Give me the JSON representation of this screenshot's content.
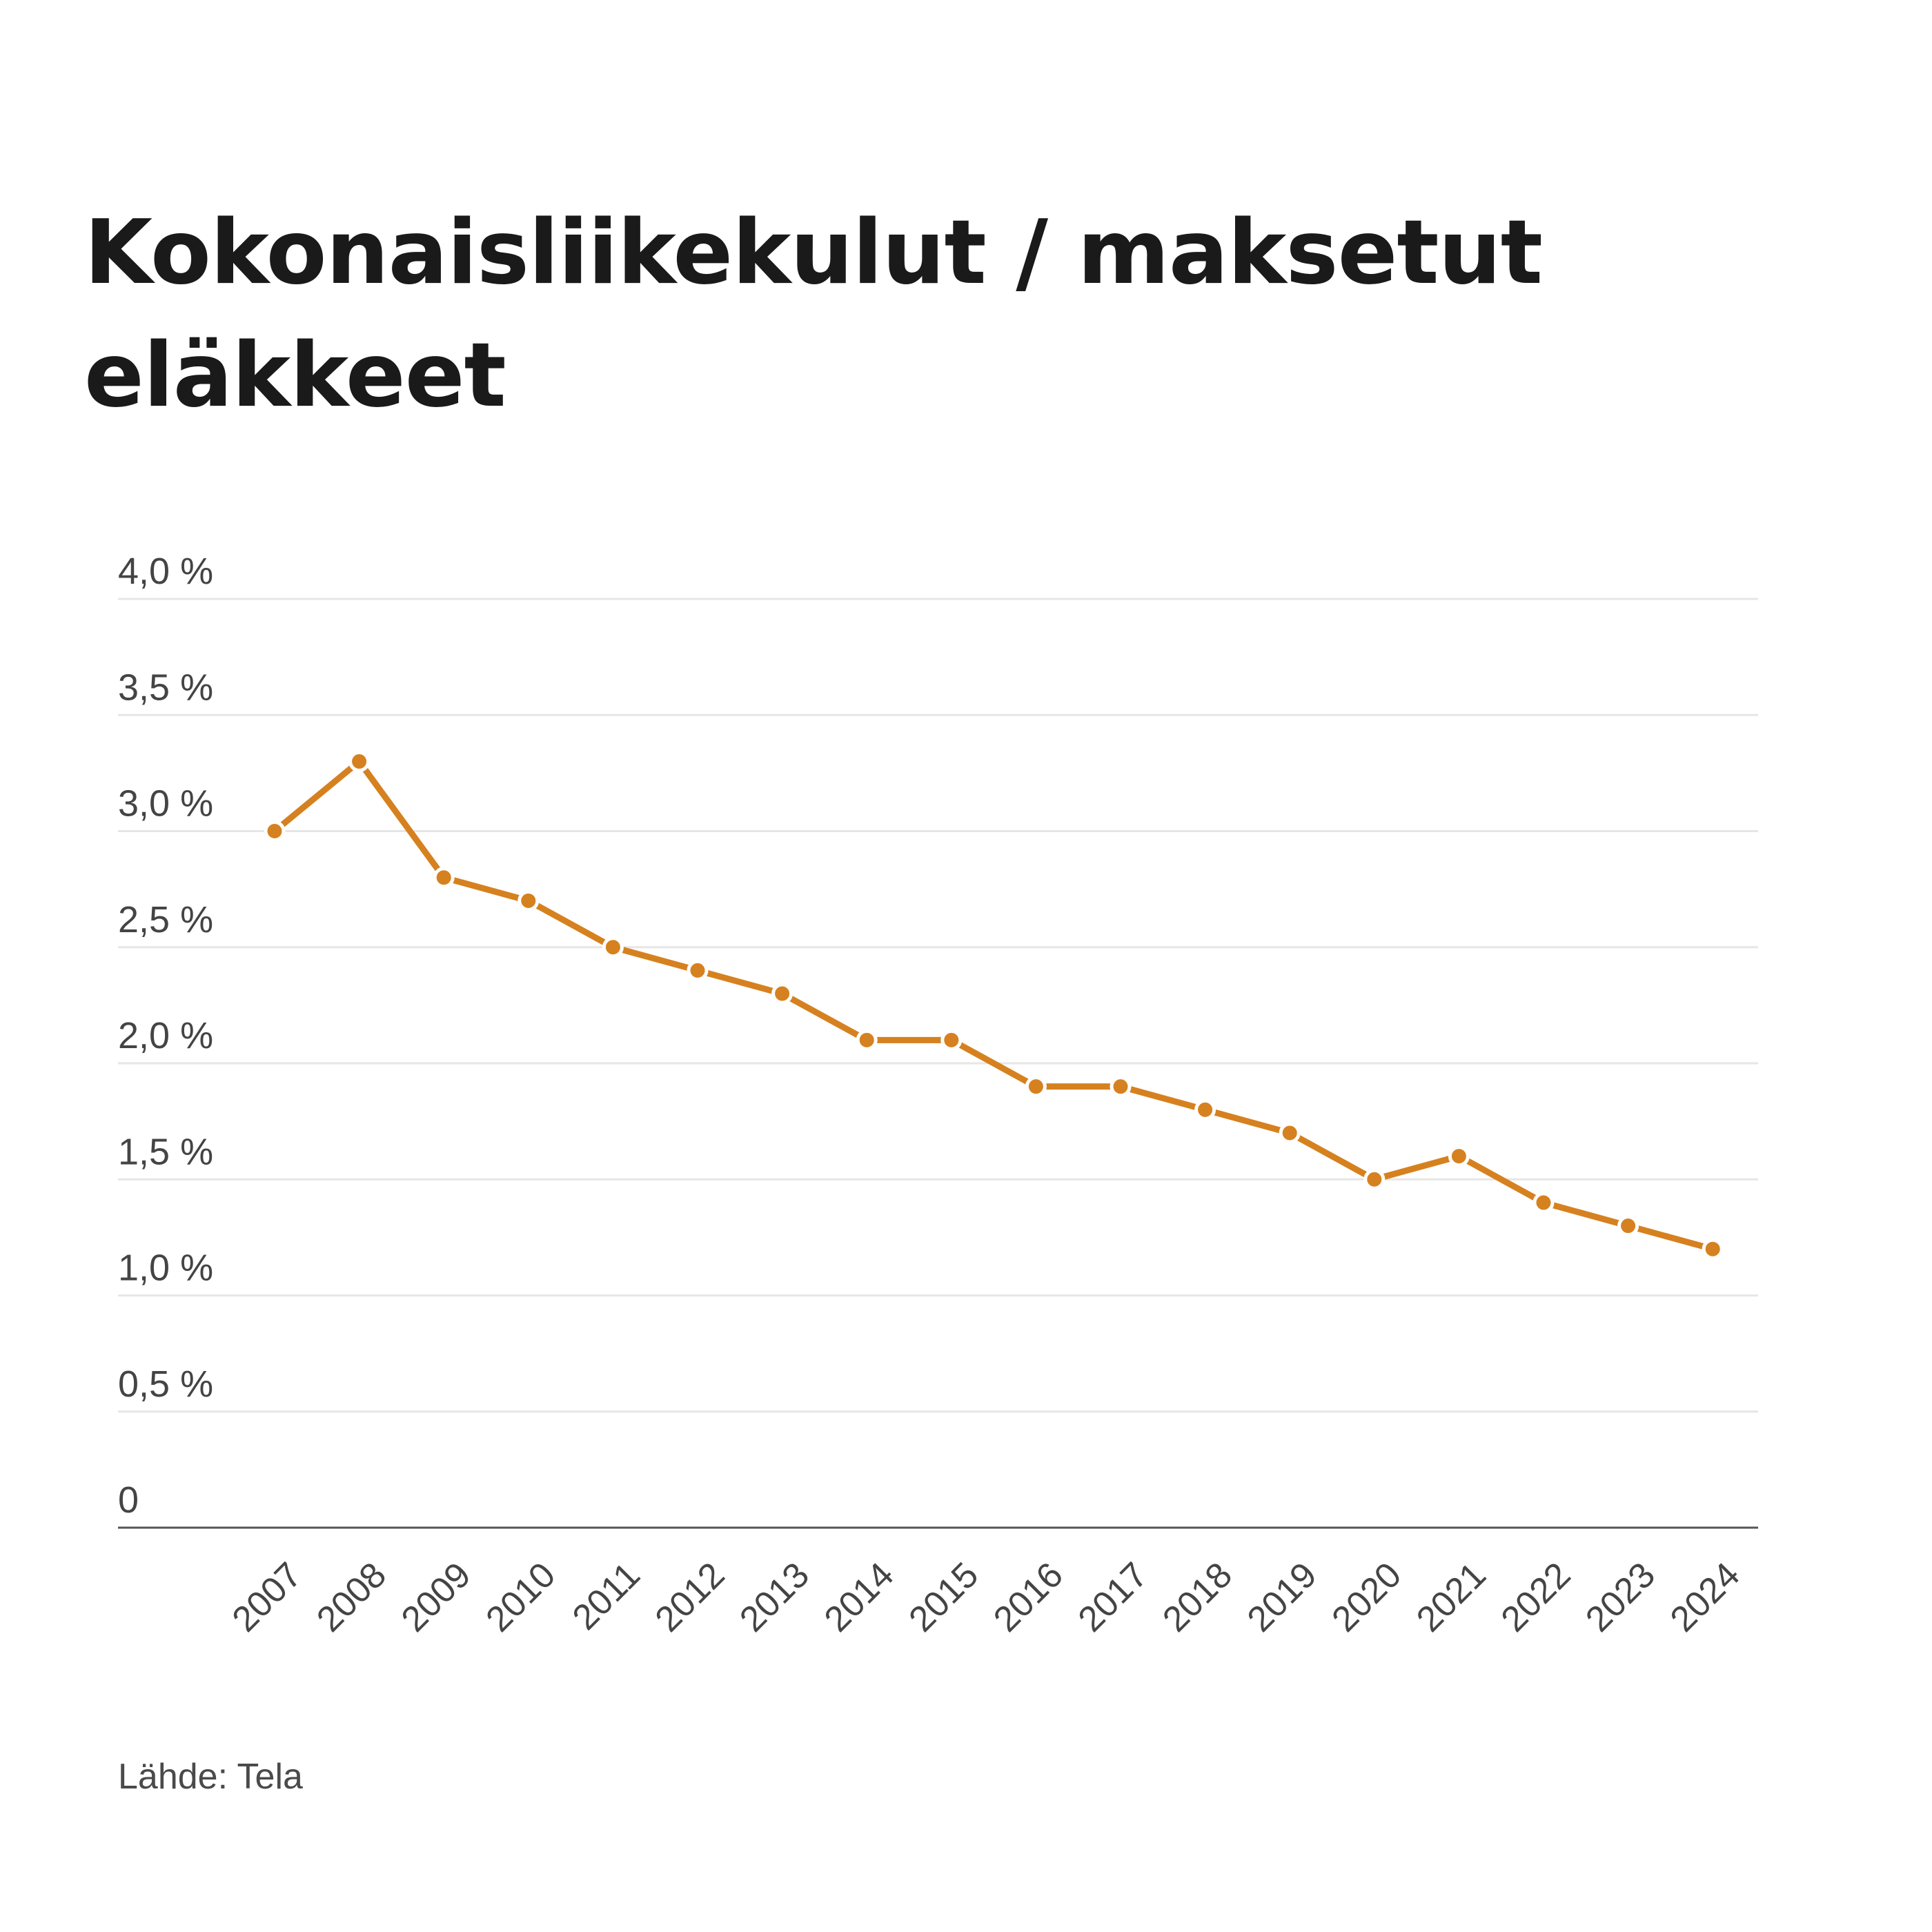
{
  "title": "Kokonaisliikekulut / maksetut eläkkeet",
  "source": "Lähde: Tela",
  "colors": {
    "line": "#d6811f",
    "grid": "#e6e6e6",
    "axis": "#555555",
    "text": "#444444"
  },
  "chart_data": {
    "type": "line",
    "title": "Kokonaisliikekulut / maksetut eläkkeet",
    "xlabel": "",
    "ylabel": "",
    "ylim": [
      0,
      4.0
    ],
    "grid": true,
    "x": [
      "2007",
      "2008",
      "2009",
      "2010",
      "2011",
      "2012",
      "2013",
      "2014",
      "2015",
      "2016",
      "2017",
      "2018",
      "2019",
      "2020",
      "2021",
      "2022",
      "2023",
      "2024"
    ],
    "y_ticks": [
      "0",
      "0,5 %",
      "1,0 %",
      "1,5 %",
      "2,0 %",
      "2,5 %",
      "3,0 %",
      "3,5 %",
      "4,0 %"
    ],
    "series": [
      {
        "values": [
          3.0,
          3.3,
          2.8,
          2.7,
          2.5,
          2.4,
          2.3,
          2.1,
          2.1,
          1.9,
          1.9,
          1.8,
          1.7,
          1.5,
          1.6,
          1.4,
          1.3,
          1.2
        ]
      }
    ]
  }
}
